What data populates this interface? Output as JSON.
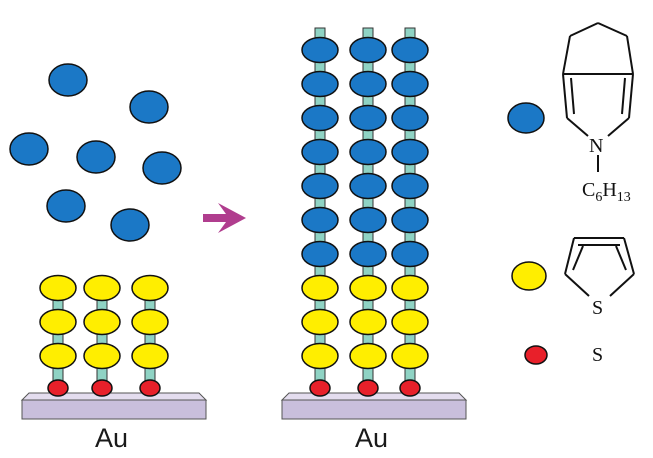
{
  "substrate_label_left": "Au",
  "substrate_label_right": "Au",
  "legend": {
    "n_label": "N",
    "alkyl_c": "C",
    "alkyl_c_sub": "6",
    "alkyl_h": "H",
    "alkyl_h_sub": "13",
    "thiophene_s": "S",
    "sulfur_label": "S"
  },
  "colors": {
    "blue_monomer": "#1b78c6",
    "yellow_monomer": "#ffee00",
    "sulfur_anchor": "#e8202a",
    "linker": "#8fd3c4",
    "gold_substrate": "#c9bfdc",
    "arrow": "#b03d8e"
  },
  "left_assembly": {
    "chains": 3,
    "yellow_per_chain": 3
  },
  "right_assembly": {
    "chains": 3,
    "yellow_per_chain": 3,
    "blue_per_chain": 7
  },
  "free_blue_monomers": 7
}
